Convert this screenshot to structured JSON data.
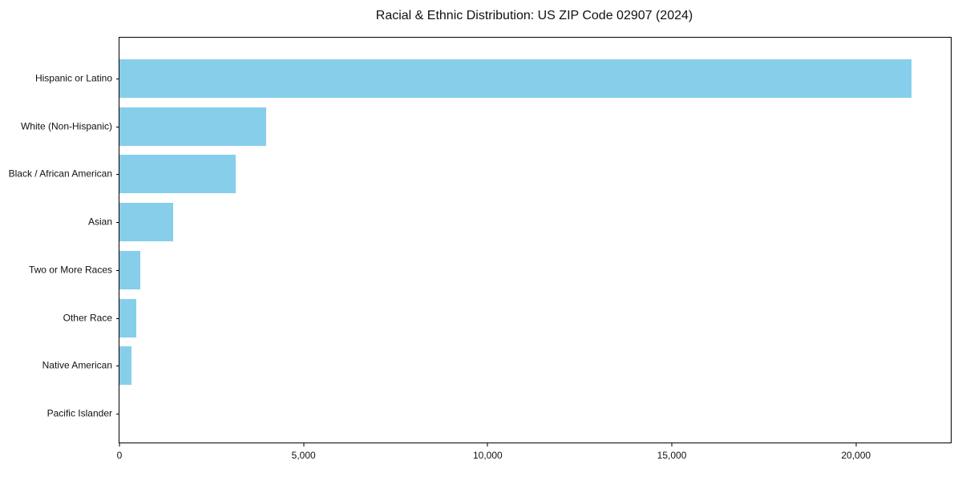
{
  "chart_data": {
    "type": "bar",
    "orientation": "horizontal",
    "title": "Racial & Ethnic Distribution: US ZIP Code 02907 (2024)",
    "xlabel": "",
    "ylabel": "",
    "categories": [
      "Hispanic or Latino",
      "White (Non-Hispanic)",
      "Black / African American",
      "Asian",
      "Two or More Races",
      "Other Race",
      "Native American",
      "Pacific Islander"
    ],
    "values": [
      21500,
      3980,
      3150,
      1450,
      570,
      460,
      330,
      0
    ],
    "xlim": [
      0,
      22575
    ],
    "x_ticks": [
      {
        "value": 0,
        "label": "0"
      },
      {
        "value": 5000,
        "label": "5,000"
      },
      {
        "value": 10000,
        "label": "10,000"
      },
      {
        "value": 15000,
        "label": "15,000"
      },
      {
        "value": 20000,
        "label": "20,000"
      }
    ],
    "grid": false,
    "legend": "none",
    "bar_color": "#87CEEB",
    "axis_color": "#000000",
    "background_color": "#ffffff"
  }
}
